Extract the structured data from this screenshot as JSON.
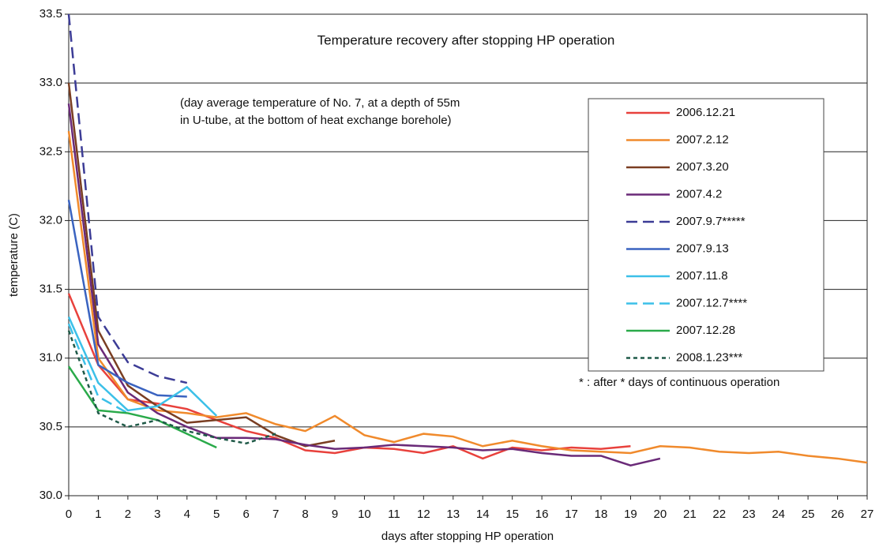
{
  "chart_data": {
    "type": "line",
    "title": "Temperature recovery after stopping HP operation",
    "subtitle": [
      "(day average temperature of No. 7, at a depth of 55m",
      "in U-tube, at the bottom of heat exchange borehole)"
    ],
    "note": "* : after * days of continuous operation",
    "x_label": "days after stopping HP operation",
    "y_label": "temperature (C)",
    "xlim": [
      0,
      27
    ],
    "ylim": [
      30,
      33.5
    ],
    "xticks": [
      0,
      1,
      2,
      3,
      4,
      5,
      6,
      7,
      8,
      9,
      10,
      11,
      12,
      13,
      14,
      15,
      16,
      17,
      18,
      19,
      20,
      21,
      22,
      23,
      24,
      25,
      26,
      27
    ],
    "yticks": [
      {
        "value": 30,
        "label": "30.0"
      },
      30.5,
      {
        "value": 31,
        "label": "31.0"
      },
      31.5,
      {
        "value": 32,
        "label": "32.0"
      },
      32.5,
      {
        "value": 33,
        "label": "33.0"
      },
      33.5
    ],
    "grid": true,
    "legend": "right",
    "series": [
      {
        "name": "2006.12.21",
        "color": "#e8413c",
        "dash": "solid",
        "x": [
          0,
          1,
          2,
          3,
          4,
          5,
          6,
          7,
          8,
          9,
          10,
          11,
          12,
          13,
          14,
          15,
          16,
          17,
          18,
          19
        ],
        "values": [
          31.47,
          30.95,
          30.7,
          30.67,
          30.63,
          30.55,
          30.47,
          30.42,
          30.33,
          30.31,
          30.35,
          30.34,
          30.31,
          30.36,
          30.27,
          30.35,
          30.33,
          30.35,
          30.34,
          30.36
        ]
      },
      {
        "name": "2007.2.12",
        "color": "#f08a2c",
        "dash": "solid",
        "x": [
          0,
          1,
          2,
          3,
          4,
          5,
          6,
          7,
          8,
          9,
          10,
          11,
          12,
          13,
          14,
          15,
          16,
          17,
          18,
          19,
          20,
          21,
          22,
          23,
          24,
          25,
          26,
          27
        ],
        "values": [
          32.65,
          31.0,
          30.7,
          30.62,
          30.6,
          30.57,
          30.6,
          30.52,
          30.47,
          30.58,
          30.44,
          30.39,
          30.45,
          30.43,
          30.36,
          30.4,
          30.36,
          30.33,
          30.32,
          30.31,
          30.36,
          30.35,
          30.32,
          30.31,
          30.32,
          30.29,
          30.27,
          30.24
        ]
      },
      {
        "name": "2007.3.20",
        "color": "#7a3e22",
        "dash": "solid",
        "x": [
          0,
          1,
          2,
          3,
          4,
          5,
          6,
          7,
          8,
          9
        ],
        "values": [
          33.0,
          31.2,
          30.8,
          30.65,
          30.53,
          30.55,
          30.57,
          30.44,
          30.36,
          30.4
        ]
      },
      {
        "name": "2007.4.2",
        "color": "#6a2a78",
        "dash": "solid",
        "x": [
          0,
          1,
          2,
          3,
          4,
          5,
          6,
          7,
          8,
          9,
          10,
          11,
          12,
          13,
          14,
          15,
          16,
          17,
          18,
          19,
          20
        ],
        "values": [
          32.85,
          31.1,
          30.75,
          30.6,
          30.5,
          30.42,
          30.42,
          30.41,
          30.37,
          30.34,
          30.35,
          30.37,
          30.36,
          30.35,
          30.33,
          30.34,
          30.31,
          30.29,
          30.29,
          30.22,
          30.27
        ]
      },
      {
        "name": "2007.9.7*****",
        "color": "#3c3c96",
        "dash": "dashed",
        "x": [
          0,
          1,
          2,
          3,
          4
        ],
        "values": [
          33.5,
          31.3,
          30.97,
          30.87,
          30.82
        ]
      },
      {
        "name": "2007.9.13",
        "color": "#3a63c0",
        "dash": "solid",
        "x": [
          0,
          1,
          2,
          3,
          4
        ],
        "values": [
          32.15,
          30.95,
          30.82,
          30.73,
          30.72
        ]
      },
      {
        "name": "2007.11.8",
        "color": "#3cc0e8",
        "dash": "solid",
        "x": [
          0,
          1,
          2,
          3,
          4,
          5
        ],
        "values": [
          31.3,
          30.82,
          30.62,
          30.65,
          30.79,
          30.58
        ]
      },
      {
        "name": "2007.12.7****",
        "color": "#3cc0e8",
        "dash": "dashed",
        "x": [
          0,
          1,
          2
        ],
        "values": [
          31.25,
          30.72,
          30.6
        ]
      },
      {
        "name": "2007.12.28",
        "color": "#2aaa4a",
        "dash": "solid",
        "x": [
          0,
          1,
          2,
          3,
          4,
          5
        ],
        "values": [
          30.94,
          30.62,
          30.6,
          30.55,
          30.45,
          30.35
        ]
      },
      {
        "name": "2008.1.23***",
        "color": "#1f5a48",
        "dash": "dotted",
        "x": [
          0,
          1,
          2,
          3,
          4,
          5,
          6,
          7
        ],
        "values": [
          31.2,
          30.6,
          30.5,
          30.55,
          30.47,
          30.42,
          30.38,
          30.45
        ]
      }
    ]
  }
}
